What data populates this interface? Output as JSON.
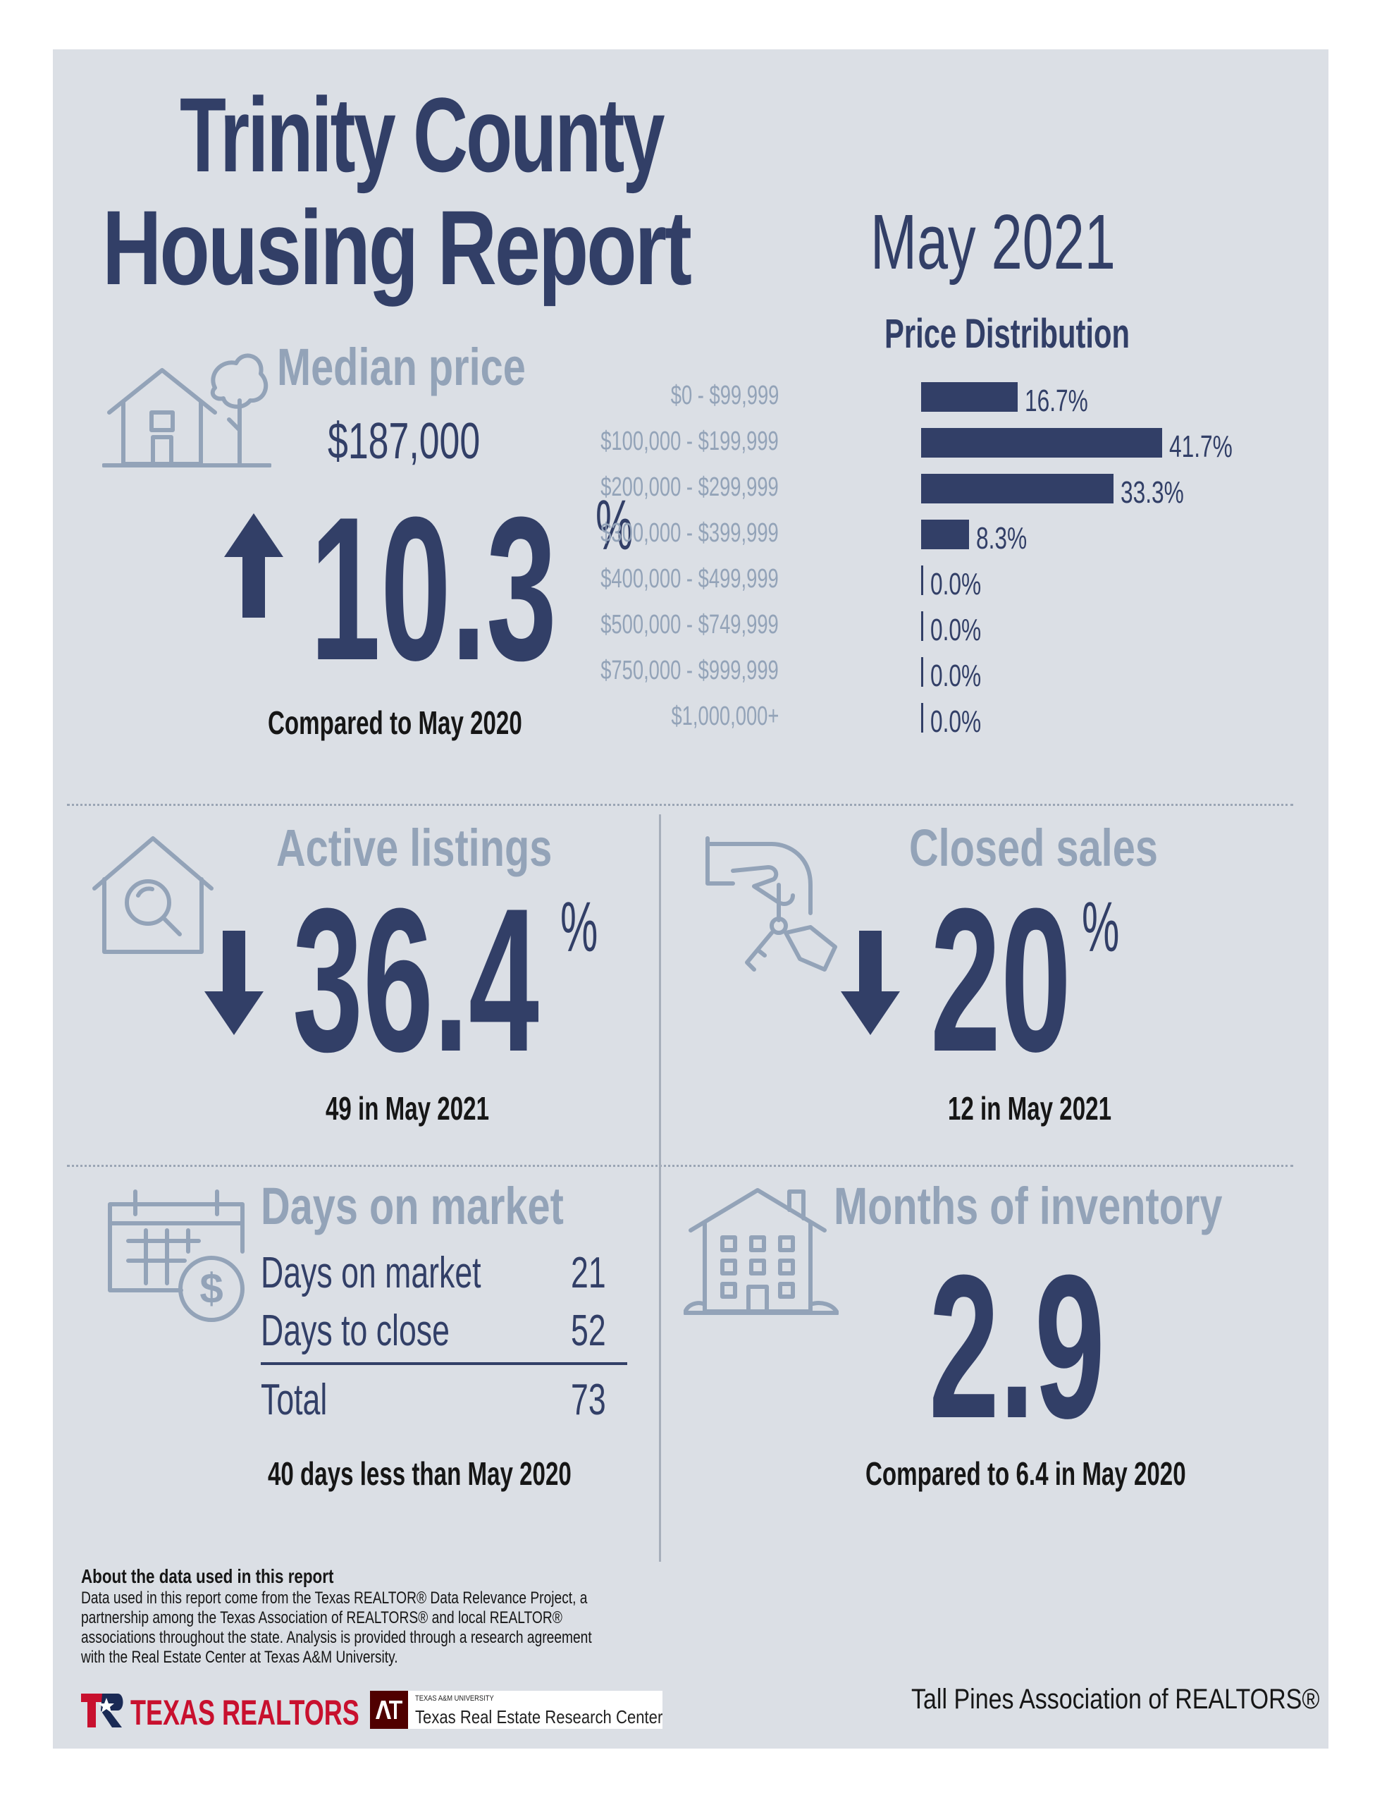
{
  "report": {
    "title_line1": "Trinity County",
    "title_line2": "Housing Report",
    "month": "May 2021"
  },
  "median_price": {
    "heading": "Median price",
    "value": "$187,000",
    "change": "10.3",
    "pct_sign": "%",
    "direction": "up",
    "caption": "Compared to May 2020"
  },
  "price_distribution": {
    "title": "Price Distribution",
    "chart_data": {
      "type": "bar",
      "orientation": "horizontal",
      "categories": [
        "$0 - $99,999",
        "$100,000 - $199,999",
        "$200,000 - $299,999",
        "$300,000 - $399,999",
        "$400,000 - $499,999",
        "$500,000 - $749,999",
        "$750,000 - $999,999",
        "$1,000,000+"
      ],
      "values": [
        16.7,
        41.7,
        33.3,
        8.3,
        0.0,
        0.0,
        0.0,
        0.0
      ],
      "labels": [
        "16.7%",
        "41.7%",
        "33.3%",
        "8.3%",
        "0.0%",
        "0.0%",
        "0.0%",
        "0.0%"
      ],
      "bar_color": "#323f67"
    }
  },
  "active_listings": {
    "heading": "Active listings",
    "change": "36.4",
    "pct_sign": "%",
    "direction": "down",
    "caption": "49 in May 2021"
  },
  "closed_sales": {
    "heading": "Closed sales",
    "change": "20",
    "pct_sign": "%",
    "direction": "down",
    "caption": "12 in May 2021"
  },
  "days_on_market": {
    "heading": "Days on market",
    "rows": [
      {
        "label": "Days on market",
        "value": "21"
      },
      {
        "label": "Days to close",
        "value": "52"
      }
    ],
    "total_label": "Total",
    "total_value": "73",
    "caption": "40 days less than May 2020"
  },
  "months_inventory": {
    "heading": "Months of inventory",
    "value": "2.9",
    "caption": "Compared to 6.4 in May 2020"
  },
  "footer": {
    "about_heading": "About the data used in this report",
    "about_lines": [
      "Data used in this report come from the Texas REALTOR® Data Relevance Project, a",
      "partnership among the Texas Association of REALTORS® and local REALTOR®",
      "associations throughout the state. Analysis is provided through a research agreement",
      "with the Real Estate Center at Texas A&M University."
    ],
    "texas_realtors_logo": "TEXAS REALTORS",
    "tamu_small": "TEXAS A&M UNIVERSITY",
    "tamu_center": "Texas Real Estate Research Center",
    "association": "Tall Pines Association of REALTORS®"
  },
  "colors": {
    "navy": "#323f67",
    "muted": "#93a3b8",
    "panel": "#dbdfe5",
    "brand_red": "#c8102e",
    "tamu_maroon": "#500000"
  }
}
